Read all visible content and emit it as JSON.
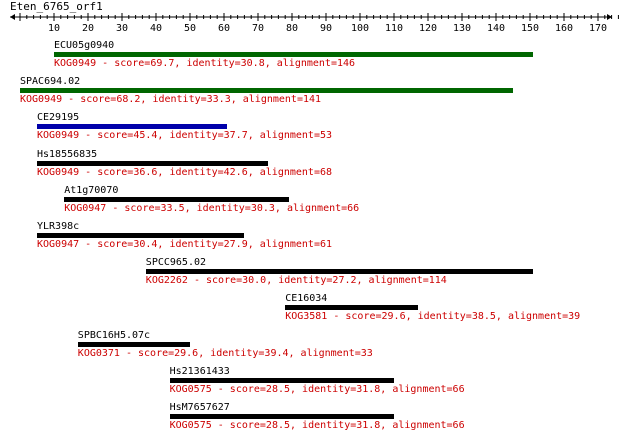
{
  "query_name": "Eten_6765_orf1",
  "ruler": {
    "min": 0,
    "max": 178,
    "major_step": 10,
    "minor_step": 2,
    "label_start": 10,
    "label_end": 170
  },
  "colors": {
    "green": "#006600",
    "blue": "#0000aa",
    "black": "#000000",
    "info": "#cc0000"
  },
  "hits": [
    {
      "name": "ECU05g0940",
      "start": 10,
      "end": 151,
      "color": "green",
      "kog": "KOG0949",
      "score": "69.7",
      "identity": "30.8",
      "alignment": "146"
    },
    {
      "name": "SPAC694.02",
      "start": 0,
      "end": 145,
      "color": "green",
      "kog": "KOG0949",
      "score": "68.2",
      "identity": "33.3",
      "alignment": "141"
    },
    {
      "name": "CE29195",
      "start": 5,
      "end": 61,
      "color": "blue",
      "kog": "KOG0949",
      "score": "45.4",
      "identity": "37.7",
      "alignment": "53"
    },
    {
      "name": "Hs18556835",
      "start": 5,
      "end": 73,
      "color": "black",
      "kog": "KOG0949",
      "score": "36.6",
      "identity": "42.6",
      "alignment": "68"
    },
    {
      "name": "At1g70070",
      "start": 13,
      "end": 79,
      "color": "black",
      "kog": "KOG0947",
      "score": "33.5",
      "identity": "30.3",
      "alignment": "66"
    },
    {
      "name": "YLR398c",
      "start": 5,
      "end": 66,
      "color": "black",
      "kog": "KOG0947",
      "score": "30.4",
      "identity": "27.9",
      "alignment": "61"
    },
    {
      "name": "SPCC965.02",
      "start": 37,
      "end": 151,
      "color": "black",
      "kog": "KOG2262",
      "score": "30.0",
      "identity": "27.2",
      "alignment": "114"
    },
    {
      "name": "CE16034",
      "start": 78,
      "end": 117,
      "color": "black",
      "kog": "KOG3581",
      "score": "29.6",
      "identity": "38.5",
      "alignment": "39"
    },
    {
      "name": "SPBC16H5.07c",
      "start": 17,
      "end": 50,
      "color": "black",
      "kog": "KOG0371",
      "score": "29.6",
      "identity": "39.4",
      "alignment": "33"
    },
    {
      "name": "Hs21361433",
      "start": 44,
      "end": 110,
      "color": "black",
      "kog": "KOG0575",
      "score": "28.5",
      "identity": "31.8",
      "alignment": "66"
    },
    {
      "name": "HsM7657627",
      "start": 44,
      "end": 110,
      "color": "black",
      "kog": "KOG0575",
      "score": "28.5",
      "identity": "31.8",
      "alignment": "66"
    }
  ]
}
